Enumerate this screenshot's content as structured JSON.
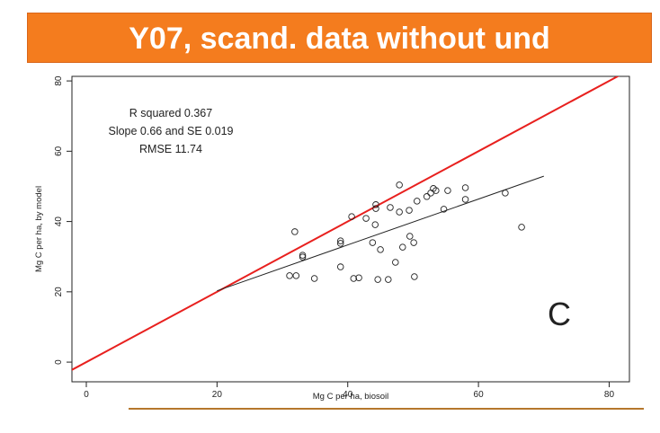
{
  "chart_data": {
    "type": "scatter",
    "title": "Y07, scand. data without und",
    "xlabel": "Mg C per ha, biosoil",
    "ylabel": "Mg C per ha, by model",
    "xlim": [
      -2.2,
      83.1
    ],
    "ylim": [
      -5.6,
      81.3
    ],
    "xticks": [
      0,
      20,
      40,
      60,
      80
    ],
    "yticks": [
      0,
      20,
      40,
      60,
      80
    ],
    "grid": false,
    "identity_line": true,
    "identity_color": "#e8201e",
    "annotations": [
      "R squared  0.367",
      "Slope  0.66  and SE  0.019",
      "RMSE 11.74",
      "C"
    ],
    "fit_line": {
      "color": "#222222",
      "x": [
        20,
        70
      ],
      "values": [
        20.3,
        52.9
      ]
    },
    "series": [
      {
        "color": "#222222",
        "x": [
          31.9,
          31.1,
          32.1,
          33.1,
          33.1,
          34.9,
          38.9,
          38.9,
          38.9,
          40.6,
          40.9,
          41.7,
          42.8,
          43.8,
          44.3,
          44.3,
          44.2,
          44.6,
          45.0,
          46.2,
          46.5,
          47.3,
          47.9,
          47.9,
          48.4,
          49.4,
          49.5,
          50.1,
          50.2,
          50.6,
          52.1,
          52.7,
          53.1,
          53.5,
          54.7,
          55.3,
          58.0,
          58.0,
          64.1,
          66.6
        ],
        "values": [
          37.1,
          24.6,
          24.6,
          30.4,
          29.9,
          23.8,
          34.5,
          33.8,
          27.1,
          41.4,
          23.8,
          24.0,
          40.9,
          34.0,
          44.8,
          43.7,
          39.1,
          23.5,
          32.0,
          23.5,
          44.0,
          28.4,
          50.4,
          42.7,
          32.7,
          43.2,
          35.8,
          34.0,
          24.3,
          45.8,
          47.1,
          48.1,
          49.4,
          48.8,
          43.5,
          48.8,
          49.6,
          46.3,
          48.1,
          38.4
        ]
      }
    ]
  }
}
